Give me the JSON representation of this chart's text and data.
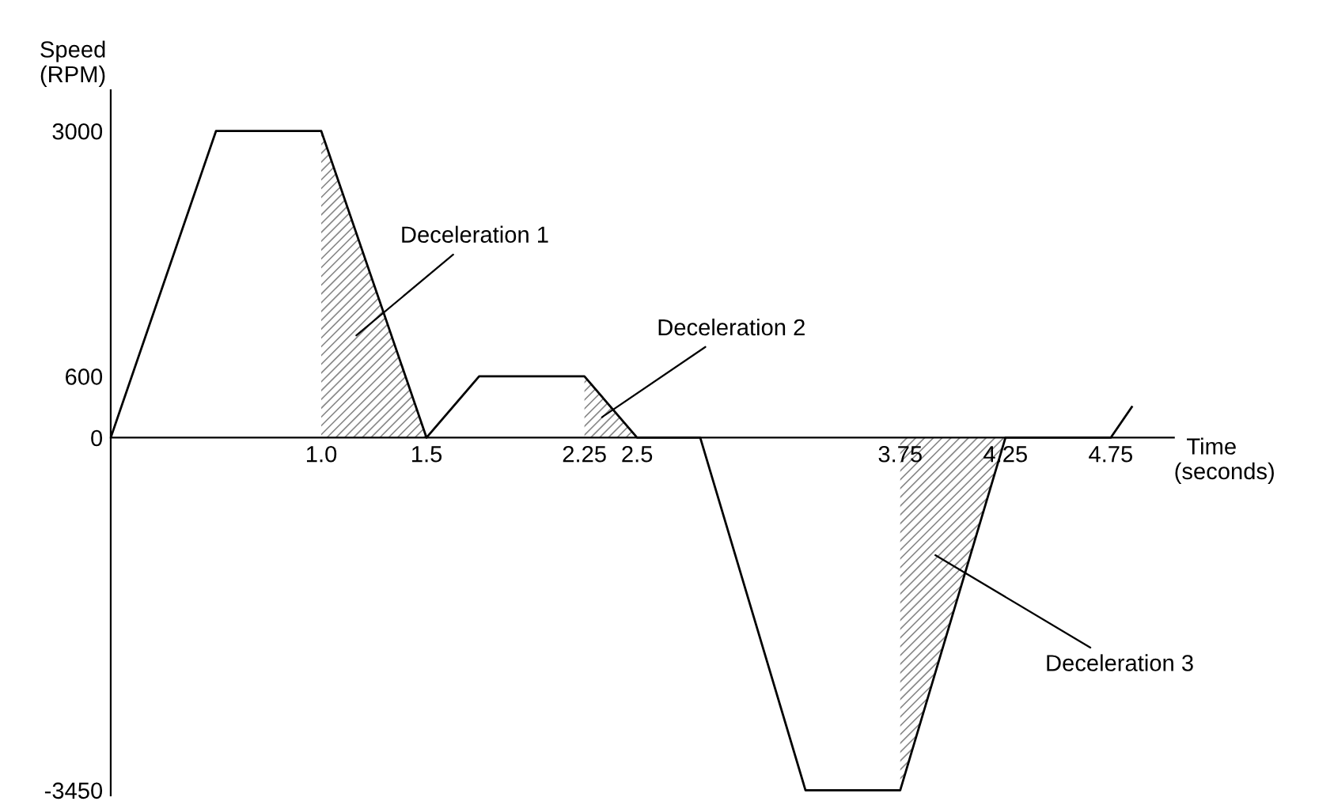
{
  "chart_data": {
    "type": "line",
    "xlabel": "Time\n(seconds)",
    "ylabel": "Speed\n(RPM)",
    "series": [
      {
        "type": "area",
        "color": "#888888",
        "x": [
          1.0,
          1.5
        ],
        "values": [
          3000,
          0
        ]
      },
      {
        "type": "area",
        "color": "#888888",
        "x": [
          2.25,
          2.5
        ],
        "values": [
          600,
          0
        ]
      },
      {
        "type": "area",
        "color": "#888888",
        "x": [
          3.75,
          4.25
        ],
        "values": [
          -3450,
          0
        ]
      },
      {
        "color": "#000000",
        "x": [
          0,
          0.5,
          1.0,
          1.5,
          1.75,
          2.25,
          2.5,
          2.8,
          3.3,
          3.75,
          4.25,
          4.75,
          4.85
        ],
        "values": [
          0,
          3000,
          3000,
          0,
          600,
          600,
          0,
          0,
          -3450,
          -3450,
          0,
          0,
          300
        ]
      }
    ],
    "xlim": [
      0,
      5.05
    ],
    "ylim": [
      -3500,
      3400
    ],
    "xticks": [
      {
        "value": 1.0,
        "label": "1.0"
      },
      1.5,
      2.25,
      2.5,
      3.75,
      4.25,
      4.75
    ],
    "yticks": [
      -3450,
      0,
      600,
      3000
    ],
    "annotations": [
      "Deceleration 1",
      "Deceleration 2",
      "Deceleration 3"
    ],
    "grid": false,
    "legend": false
  }
}
